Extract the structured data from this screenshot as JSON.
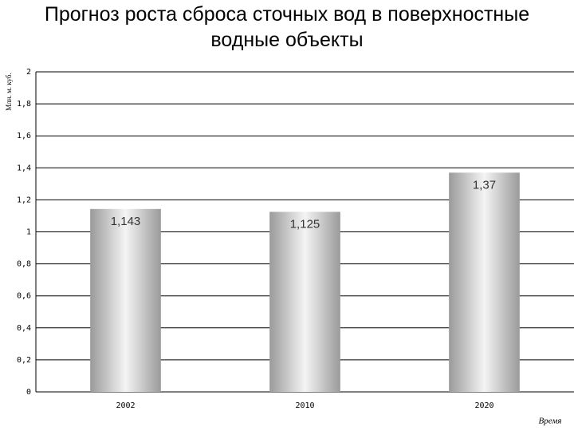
{
  "chart_data": {
    "type": "bar",
    "title": "Прогноз роста сброса сточных вод в поверхностные водные объекты",
    "y_label": "Млн. м. куб.",
    "x_label": "Время",
    "categories": [
      "2002",
      "2010",
      "2020"
    ],
    "values": [
      1.143,
      1.125,
      1.37
    ],
    "value_labels": [
      "1,143",
      "1,125",
      "1,37"
    ],
    "color": "#a0a0a0",
    "ylim": [
      0,
      2
    ],
    "yticks": [
      0,
      {
        "value": 0.2,
        "label": "0,2"
      },
      {
        "value": 0.4,
        "label": "0,4"
      },
      {
        "value": 0.6,
        "label": "0,6"
      },
      {
        "value": 0.8,
        "label": "0,8"
      },
      1,
      {
        "value": 1.2,
        "label": "1,2"
      },
      {
        "value": 1.4,
        "label": "1,4"
      },
      {
        "value": 1.6,
        "label": "1,6"
      },
      {
        "value": 1.8,
        "label": "1,8"
      },
      2
    ],
    "grid": true
  }
}
